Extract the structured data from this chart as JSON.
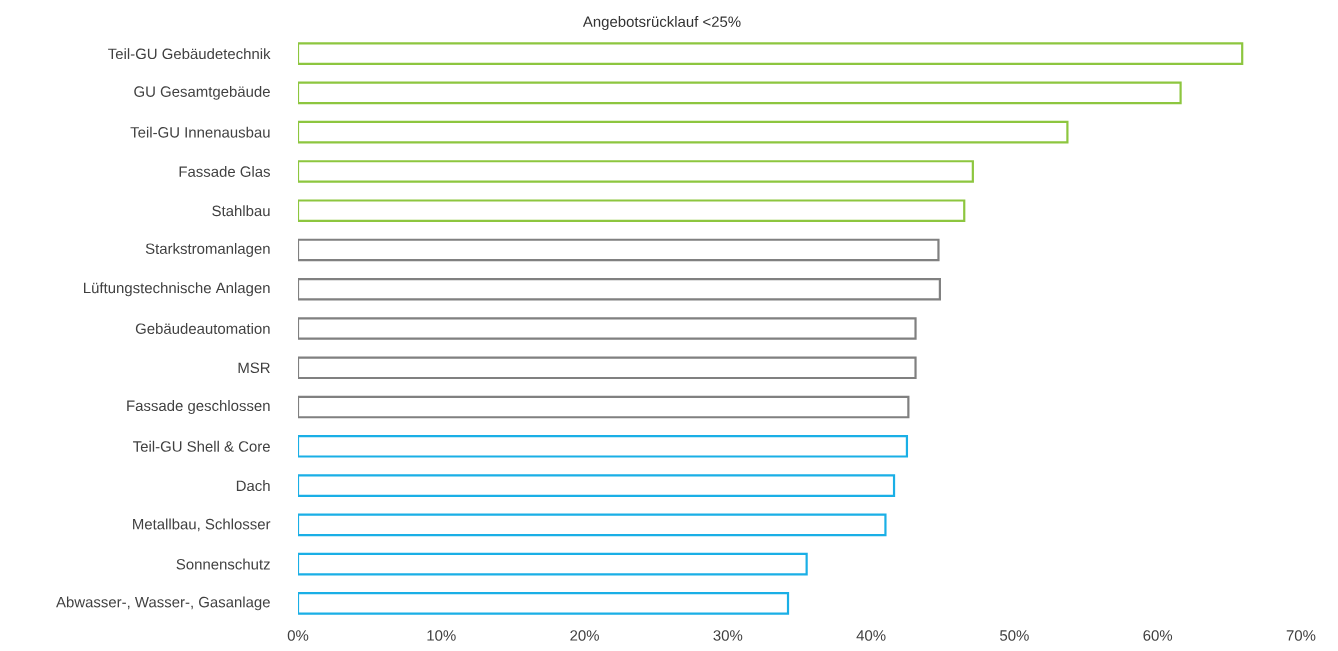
{
  "chart_data": {
    "type": "bar",
    "orientation": "horizontal",
    "title": "Angebotsrücklauf <25%",
    "categories": [
      "Teil-GU Gebäudetechnik",
      "GU Gesamtgebäude",
      "Teil-GU Innenausbau",
      "Fassade Glas",
      "Stahlbau",
      "Starkstromanlagen",
      "Lüftungstechnische Anlagen",
      "Gebäudeautomation",
      "MSR",
      "Fassade geschlossen",
      "Teil-GU Shell & Core",
      "Dach",
      "Metallbau, Schlosser",
      "Sonnenschutz",
      "Abwasser-, Wasser-, Gasanlage"
    ],
    "values": [
      65.9,
      61.6,
      53.7,
      47.1,
      46.5,
      44.7,
      44.8,
      43.1,
      43.1,
      42.6,
      42.5,
      41.6,
      41.0,
      35.5,
      34.2
    ],
    "colors": [
      "#8dc63f",
      "#8dc63f",
      "#8dc63f",
      "#8dc63f",
      "#8dc63f",
      "#808080",
      "#808080",
      "#808080",
      "#808080",
      "#808080",
      "#1aafe6",
      "#1aafe6",
      "#1aafe6",
      "#1aafe6",
      "#1aafe6"
    ],
    "xlim": [
      0,
      70
    ],
    "xticks": [
      {
        "value": 0,
        "label": "0%"
      },
      {
        "value": 10,
        "label": "10%"
      },
      {
        "value": 20,
        "label": "20%"
      },
      {
        "value": 30,
        "label": "30%"
      },
      {
        "value": 40,
        "label": "40%"
      },
      {
        "value": 50,
        "label": "50%"
      },
      {
        "value": 60,
        "label": "60%"
      },
      {
        "value": 70,
        "label": "70%"
      }
    ],
    "grid": false
  }
}
